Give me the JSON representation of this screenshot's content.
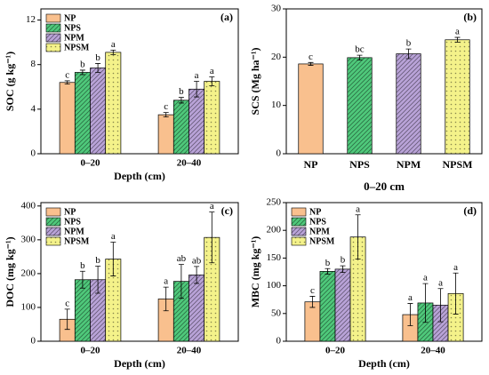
{
  "chart_data": [
    {
      "type": "bar",
      "panel_label": "(a)",
      "ylabel": "SOC (g kg⁻¹)",
      "xlabel": "Depth (cm)",
      "categories": [
        "0–20",
        "20–40"
      ],
      "ylim": [
        0,
        13
      ],
      "yticks": [
        0,
        4,
        8,
        12
      ],
      "legend": "upper left",
      "series": [
        {
          "name": "NP",
          "color": "#f9c08e",
          "hatch": null,
          "values": [
            6.4,
            3.5
          ],
          "errors": [
            0.15,
            0.2
          ],
          "letters": [
            "c",
            "c"
          ]
        },
        {
          "name": "NPS",
          "color": "#4fc97b",
          "hatch": "lines",
          "values": [
            7.3,
            4.8
          ],
          "errors": [
            0.2,
            0.25
          ],
          "letters": [
            "b",
            "b"
          ]
        },
        {
          "name": "NPM",
          "color": "#b9a3d8",
          "hatch": "lines",
          "values": [
            7.7,
            5.8
          ],
          "errors": [
            0.4,
            0.7
          ],
          "letters": [
            "b",
            "a"
          ]
        },
        {
          "name": "NPSM",
          "color": "#f4f28a",
          "hatch": "dots",
          "values": [
            9.1,
            6.5
          ],
          "errors": [
            0.2,
            0.4
          ],
          "letters": [
            "a",
            "a"
          ]
        }
      ]
    },
    {
      "type": "bar",
      "panel_label": "(b)",
      "ylabel": "SCS (Mg ha⁻¹)",
      "xlabel": "0–20 cm",
      "categories": [
        "NP",
        "NPS",
        "NPM",
        "NPSM"
      ],
      "ylim": [
        0,
        30
      ],
      "yticks": [
        0,
        10,
        20,
        30
      ],
      "values": [
        18.6,
        19.9,
        20.7,
        23.6
      ],
      "errors": [
        0.3,
        0.5,
        1.0,
        0.5
      ],
      "letters": [
        "c",
        "bc",
        "b",
        "a"
      ],
      "colors": [
        "#f9c08e",
        "#4fc97b",
        "#b9a3d8",
        "#f4f28a"
      ],
      "hatches": [
        null,
        "lines",
        "lines",
        "dots"
      ]
    },
    {
      "type": "bar",
      "panel_label": "(c)",
      "ylabel": "DOC (mg kg⁻¹)",
      "xlabel": "Depth (cm)",
      "categories": [
        "0–20",
        "20–40"
      ],
      "ylim": [
        0,
        410
      ],
      "yticks": [
        0,
        100,
        200,
        300,
        400
      ],
      "legend": "upper left",
      "series": [
        {
          "name": "NP",
          "color": "#f9c08e",
          "hatch": null,
          "values": [
            65,
            125
          ],
          "errors": [
            30,
            35
          ],
          "letters": [
            "c",
            "a"
          ]
        },
        {
          "name": "NPS",
          "color": "#4fc97b",
          "hatch": "lines",
          "values": [
            182,
            177
          ],
          "errors": [
            25,
            50
          ],
          "letters": [
            "b",
            "ab"
          ]
        },
        {
          "name": "NPM",
          "color": "#b9a3d8",
          "hatch": "lines",
          "values": [
            182,
            196
          ],
          "errors": [
            40,
            25
          ],
          "letters": [
            "b",
            "ab"
          ]
        },
        {
          "name": "NPSM",
          "color": "#f4f28a",
          "hatch": "dots",
          "values": [
            243,
            307
          ],
          "errors": [
            50,
            75
          ],
          "letters": [
            "a",
            "a"
          ]
        }
      ]
    },
    {
      "type": "bar",
      "panel_label": "(d)",
      "ylabel": "MBC (mg kg⁻¹)",
      "xlabel": "Depth (cm)",
      "categories": [
        "0–20",
        "20–40"
      ],
      "ylim": [
        0,
        250
      ],
      "yticks": [
        0,
        50,
        100,
        150,
        200,
        250
      ],
      "legend": "upper left",
      "series": [
        {
          "name": "NP",
          "color": "#f9c08e",
          "hatch": null,
          "values": [
            71,
            48
          ],
          "errors": [
            10,
            20
          ],
          "letters": [
            "c",
            "a"
          ]
        },
        {
          "name": "NPS",
          "color": "#4fc97b",
          "hatch": "lines",
          "values": [
            126,
            69
          ],
          "errors": [
            5,
            35
          ],
          "letters": [
            "b",
            "a"
          ]
        },
        {
          "name": "NPM",
          "color": "#b9a3d8",
          "hatch": "lines",
          "values": [
            130,
            65
          ],
          "errors": [
            6,
            30
          ],
          "letters": [
            "b",
            "a"
          ]
        },
        {
          "name": "NPSM",
          "color": "#f4f28a",
          "hatch": "dots",
          "values": [
            188,
            86
          ],
          "errors": [
            40,
            37
          ],
          "letters": [
            "a",
            "a"
          ]
        }
      ]
    }
  ]
}
